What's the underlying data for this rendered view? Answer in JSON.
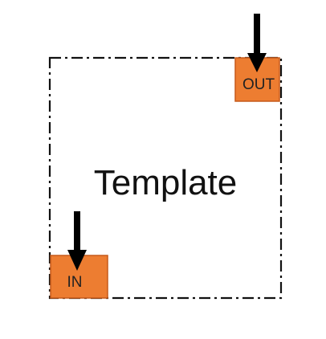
{
  "diagram": {
    "template_label": "Template",
    "ports": {
      "out_label": "OUT",
      "in_label": "IN"
    },
    "colors": {
      "port_fill": "#ED7D31",
      "port_stroke": "#C65A1A",
      "border": "#111111",
      "arrow": "#000000",
      "text": "#111111"
    },
    "border_style": "dash-dot",
    "icons": {
      "arrows": "down-arrow-icon"
    }
  }
}
